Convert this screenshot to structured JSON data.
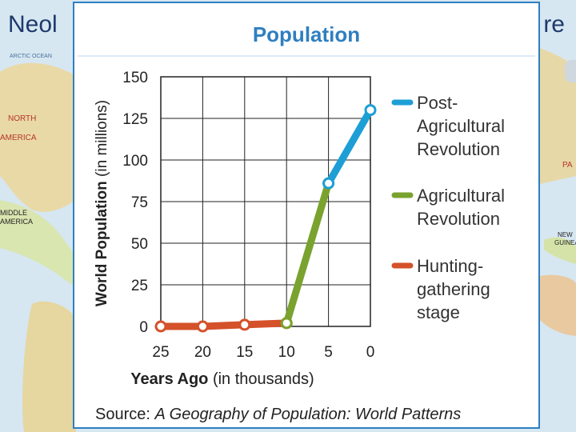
{
  "slide": {
    "title_left": "Neol",
    "title_right": "re"
  },
  "map_labels": {
    "arctic": "ARCTIC OCEAN",
    "north_america": "NORTH",
    "north_america_2": "AMERICA",
    "middle_america": "MIDDLE",
    "middle_america_2": "AMERICA",
    "new_guinea": "NEW",
    "new_guinea_2": "GUINEA",
    "pa": "PA"
  },
  "chart_data": {
    "type": "line",
    "title": "Population",
    "xlabel_bold": "Years Ago",
    "xlabel_rest": " (in thousands)",
    "ylabel_bold": "World Population",
    "ylabel_rest": " (in millions)",
    "x_ticks": [
      "25",
      "20",
      "15",
      "10",
      "5",
      "0"
    ],
    "y_ticks": [
      "0",
      "25",
      "50",
      "75",
      "100",
      "125",
      "150"
    ],
    "xlim": [
      25,
      0
    ],
    "ylim": [
      0,
      150
    ],
    "grid": true,
    "legend_position": "right",
    "series": [
      {
        "name": "Hunting-gathering stage",
        "legend_lines": [
          "Hunting-",
          "gathering",
          "stage"
        ],
        "color": "#d4512a",
        "points": [
          [
            25,
            0
          ],
          [
            20,
            0
          ],
          [
            15,
            1
          ],
          [
            10,
            2
          ]
        ]
      },
      {
        "name": "Agricultural Revolution",
        "legend_lines": [
          "Agricultural",
          "Revolution"
        ],
        "color": "#7aa22e",
        "points": [
          [
            10,
            2
          ],
          [
            5,
            86
          ]
        ]
      },
      {
        "name": "Post-Agricultural Revolution",
        "legend_lines": [
          "Post-",
          "Agricultural",
          "Revolution"
        ],
        "color": "#1d9fd6",
        "points": [
          [
            5,
            86
          ],
          [
            0,
            130
          ]
        ]
      }
    ],
    "source_label": "Source: ",
    "source_italic": "A Geography of Population: World Patterns"
  }
}
